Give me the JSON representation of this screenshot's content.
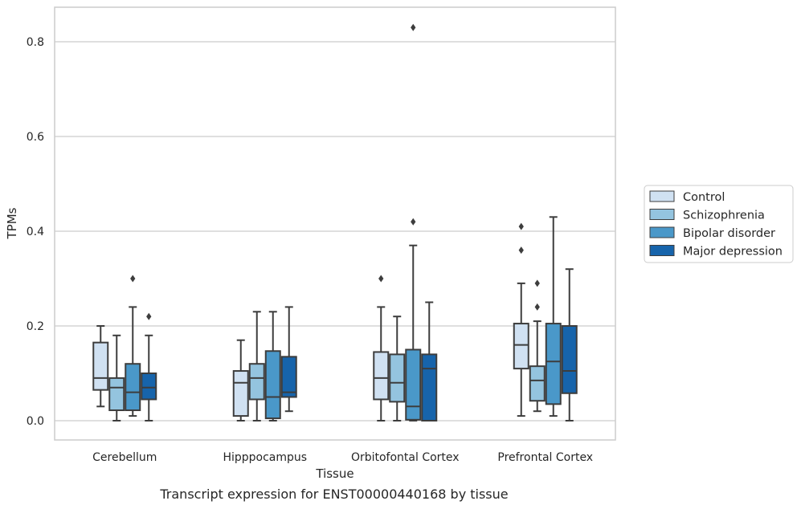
{
  "caption": "Transcript expression for ENST00000440168 by tissue",
  "chart_data": {
    "type": "box",
    "title": "",
    "xlabel": "Tissue",
    "ylabel": "TPMs",
    "ylim": [
      -0.04,
      0.875
    ],
    "yticks": [
      0.0,
      0.2,
      0.4,
      0.6,
      0.8
    ],
    "ytick_labels": [
      "0.0",
      "0.2",
      "0.4",
      "0.6",
      "0.8"
    ],
    "grid": "horizontal",
    "legend_position": "right-outside",
    "categories": [
      "Cerebellum",
      "Hipppocampus",
      "Orbitofontal Cortex",
      "Prefrontal Cortex"
    ],
    "series": [
      {
        "name": "Control",
        "color": "#d0e1f2",
        "boxes": [
          {
            "whislo": 0.03,
            "q1": 0.065,
            "med": 0.09,
            "q3": 0.165,
            "whishi": 0.2,
            "fliers": []
          },
          {
            "whislo": 0.0,
            "q1": 0.01,
            "med": 0.08,
            "q3": 0.105,
            "whishi": 0.17,
            "fliers": []
          },
          {
            "whislo": 0.0,
            "q1": 0.045,
            "med": 0.09,
            "q3": 0.145,
            "whishi": 0.24,
            "fliers": [
              0.3
            ]
          },
          {
            "whislo": 0.01,
            "q1": 0.11,
            "med": 0.16,
            "q3": 0.205,
            "whishi": 0.29,
            "fliers": [
              0.36,
              0.41
            ]
          }
        ]
      },
      {
        "name": "Schizophrenia",
        "color": "#94c4df",
        "boxes": [
          {
            "whislo": 0.0,
            "q1": 0.022,
            "med": 0.07,
            "q3": 0.09,
            "whishi": 0.18,
            "fliers": []
          },
          {
            "whislo": 0.0,
            "q1": 0.045,
            "med": 0.09,
            "q3": 0.12,
            "whishi": 0.23,
            "fliers": []
          },
          {
            "whislo": 0.0,
            "q1": 0.04,
            "med": 0.08,
            "q3": 0.14,
            "whishi": 0.22,
            "fliers": []
          },
          {
            "whislo": 0.02,
            "q1": 0.042,
            "med": 0.085,
            "q3": 0.115,
            "whishi": 0.21,
            "fliers": [
              0.24,
              0.29
            ]
          }
        ]
      },
      {
        "name": "Bipolar disorder",
        "color": "#4a98c9",
        "boxes": [
          {
            "whislo": 0.01,
            "q1": 0.022,
            "med": 0.06,
            "q3": 0.12,
            "whishi": 0.24,
            "fliers": [
              0.3
            ]
          },
          {
            "whislo": 0.0,
            "q1": 0.005,
            "med": 0.05,
            "q3": 0.147,
            "whishi": 0.23,
            "fliers": []
          },
          {
            "whislo": 0.0,
            "q1": 0.002,
            "med": 0.03,
            "q3": 0.15,
            "whishi": 0.37,
            "fliers": [
              0.42,
              0.83
            ]
          },
          {
            "whislo": 0.01,
            "q1": 0.035,
            "med": 0.125,
            "q3": 0.205,
            "whishi": 0.43,
            "fliers": []
          }
        ]
      },
      {
        "name": "Major depression",
        "color": "#1764ab",
        "boxes": [
          {
            "whislo": 0.0,
            "q1": 0.045,
            "med": 0.07,
            "q3": 0.1,
            "whishi": 0.18,
            "fliers": [
              0.22
            ]
          },
          {
            "whislo": 0.02,
            "q1": 0.05,
            "med": 0.06,
            "q3": 0.135,
            "whishi": 0.24,
            "fliers": []
          },
          {
            "whislo": 0.0,
            "q1": 0.0,
            "med": 0.11,
            "q3": 0.14,
            "whishi": 0.25,
            "fliers": []
          },
          {
            "whislo": 0.0,
            "q1": 0.058,
            "med": 0.105,
            "q3": 0.2,
            "whishi": 0.32,
            "fliers": []
          }
        ]
      }
    ]
  }
}
